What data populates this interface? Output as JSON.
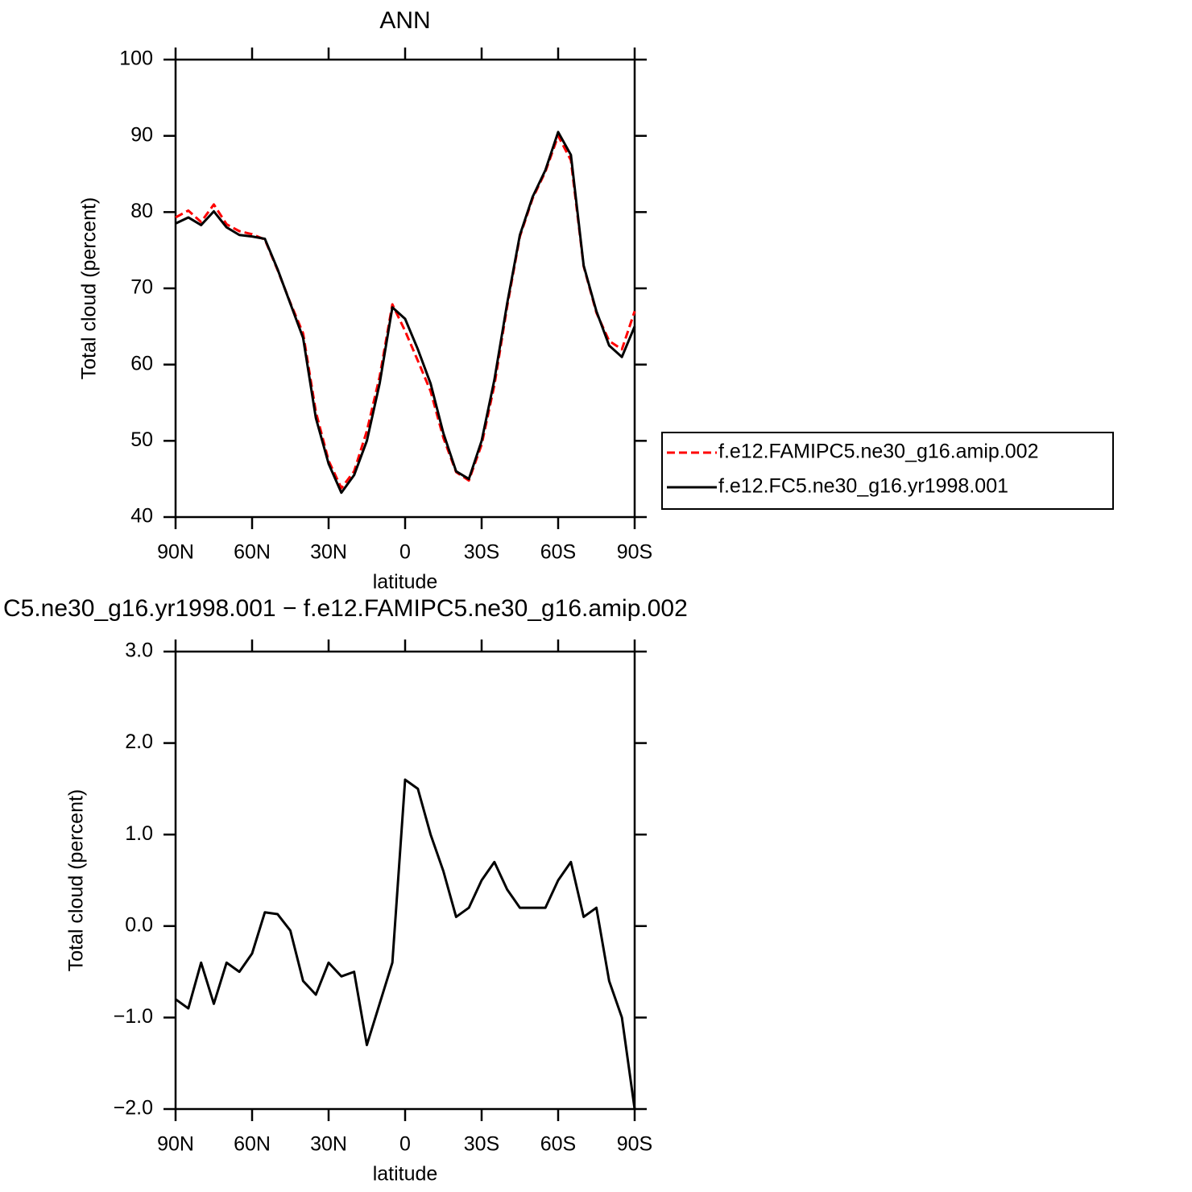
{
  "chart_data": [
    {
      "type": "line",
      "title": "ANN",
      "x_label": "latitude",
      "y_label": "Total cloud (percent)",
      "x": [
        90,
        85,
        80,
        75,
        70,
        65,
        60,
        55,
        50,
        45,
        40,
        35,
        30,
        25,
        20,
        15,
        10,
        5,
        0,
        -5,
        -10,
        -15,
        -20,
        -25,
        -30,
        -35,
        -40,
        -45,
        -50,
        -55,
        -60,
        -65,
        -70,
        -75,
        -80,
        -85,
        -90
      ],
      "series": [
        {
          "name": "f.e12.FAMIPC5.ne30_g16.amip.002",
          "color": "#ff0000",
          "line_style": "dashed",
          "values": [
            79.3,
            80.2,
            78.7,
            81.0,
            78.4,
            77.5,
            77.1,
            76.4,
            72.4,
            68.1,
            64.1,
            53.8,
            47.4,
            43.8,
            46.0,
            51.3,
            58.4,
            67.9,
            64.4,
            60.5,
            56.5,
            50.4,
            45.9,
            44.8,
            49.5,
            57.3,
            67.6,
            76.8,
            81.8,
            85.3,
            90.0,
            86.8,
            72.9,
            66.8,
            63.1,
            62.0,
            67.0
          ]
        },
        {
          "name": "f.e12.FC5.ne30_g16.yr1998.001",
          "color": "#000000",
          "line_style": "solid",
          "values": [
            78.5,
            79.3,
            78.3,
            80.1,
            78.0,
            77.0,
            76.8,
            76.5,
            72.5,
            68.0,
            63.5,
            53.0,
            47.0,
            43.2,
            45.5,
            50.0,
            57.5,
            67.5,
            66.0,
            62.0,
            57.5,
            51.0,
            46.0,
            45.0,
            50.0,
            58.0,
            68.0,
            77.0,
            82.0,
            85.5,
            90.5,
            87.5,
            73.0,
            67.0,
            62.5,
            61.0,
            65.0
          ]
        }
      ],
      "xlim": [
        90,
        -90
      ],
      "xticks": [
        {
          "value": 90,
          "label": "90N"
        },
        {
          "value": 60,
          "label": "60N"
        },
        {
          "value": 30,
          "label": "30N"
        },
        0,
        {
          "value": -30,
          "label": "30S"
        },
        {
          "value": -60,
          "label": "60S"
        },
        {
          "value": -90,
          "label": "90S"
        }
      ],
      "ylim": [
        40,
        100
      ],
      "yticks": [
        40,
        50,
        60,
        70,
        80,
        90,
        100
      ],
      "legend": "outside-right"
    },
    {
      "type": "line",
      "title": "C5.ne30_g16.yr1998.001 − f.e12.FAMIPC5.ne30_g16.amip.002",
      "x_label": "latitude",
      "y_label": "Total cloud (percent)",
      "x": [
        90,
        85,
        80,
        75,
        70,
        65,
        60,
        55,
        50,
        45,
        40,
        35,
        30,
        25,
        20,
        15,
        10,
        5,
        0,
        -5,
        -10,
        -15,
        -20,
        -25,
        -30,
        -35,
        -40,
        -45,
        -50,
        -55,
        -60,
        -65,
        -70,
        -75,
        -80,
        -85,
        -90
      ],
      "series": [
        {
          "color": "#000000",
          "line_style": "solid",
          "values": [
            -0.8,
            -0.9,
            -0.4,
            -0.85,
            -0.4,
            -0.5,
            -0.3,
            0.15,
            0.13,
            -0.05,
            -0.6,
            -0.75,
            -0.4,
            -0.55,
            -0.5,
            -1.3,
            -0.85,
            -0.4,
            1.6,
            1.5,
            1.0,
            0.6,
            0.1,
            0.2,
            0.5,
            0.7,
            0.4,
            0.2,
            0.2,
            0.2,
            0.5,
            0.7,
            0.1,
            0.2,
            -0.6,
            -1.0,
            -2.0
          ]
        }
      ],
      "xlim": [
        90,
        -90
      ],
      "xticks": [
        {
          "value": 90,
          "label": "90N"
        },
        {
          "value": 60,
          "label": "60N"
        },
        {
          "value": 30,
          "label": "30N"
        },
        0,
        {
          "value": -30,
          "label": "30S"
        },
        {
          "value": -60,
          "label": "60S"
        },
        {
          "value": -90,
          "label": "90S"
        }
      ],
      "ylim": [
        -2,
        3
      ],
      "yticks": [
        {
          "value": -2,
          "label": "−2.0"
        },
        {
          "value": -1,
          "label": "−1.0"
        },
        {
          "value": 0,
          "label": "0.0"
        },
        {
          "value": 1,
          "label": "1.0"
        },
        {
          "value": 2,
          "label": "2.0"
        },
        {
          "value": 3,
          "label": "3.0"
        }
      ]
    }
  ]
}
